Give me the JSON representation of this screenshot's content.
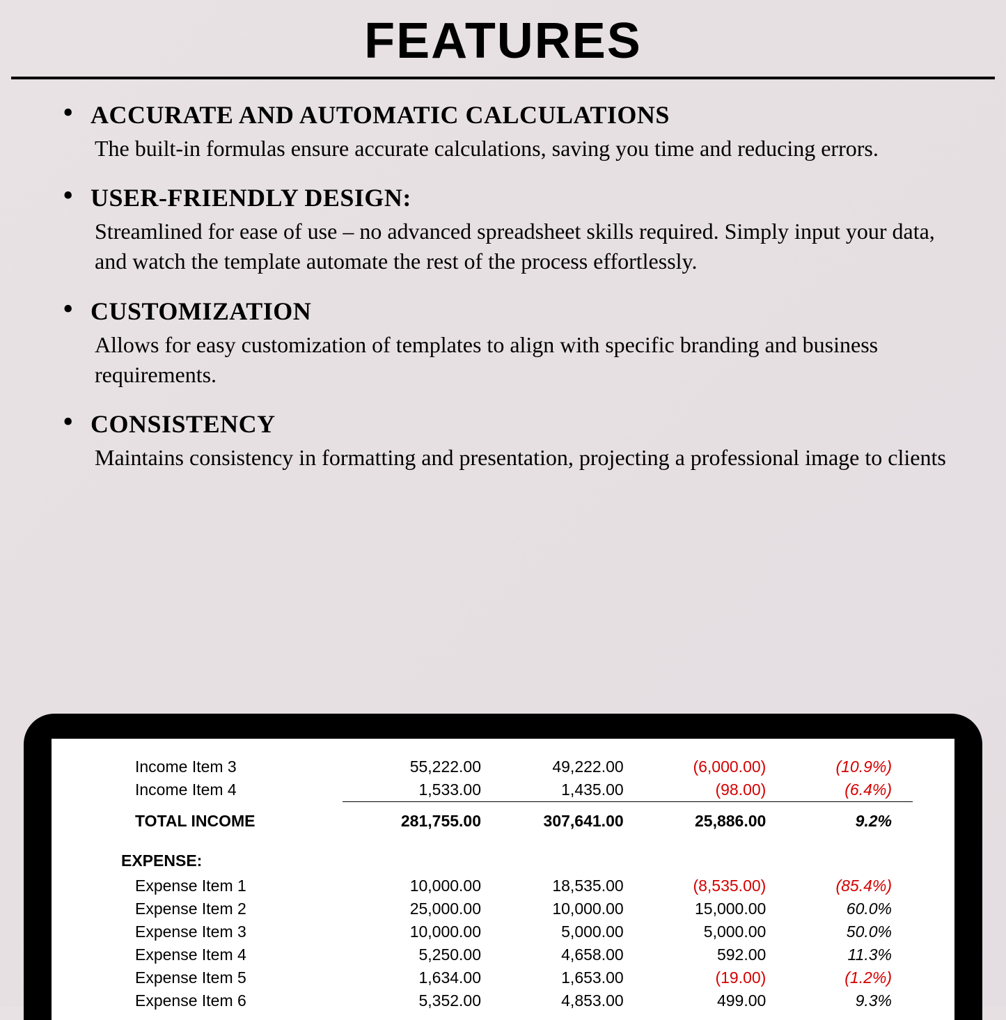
{
  "title": "FEATURES",
  "features": [
    {
      "heading": "ACCURATE AND AUTOMATIC CALCULATIONS",
      "body": "The built-in formulas ensure accurate calculations, saving you time and reducing errors."
    },
    {
      "heading": "USER-FRIENDLY DESIGN:",
      "body": "Streamlined for ease of use – no advanced spreadsheet skills required. Simply input your data, and watch the template automate the rest of the process effortlessly."
    },
    {
      "heading": "CUSTOMIZATION",
      "body": "Allows for easy customization of templates to align with specific branding and business requirements."
    },
    {
      "heading": "CONSISTENCY",
      "body": "Maintains consistency in formatting and presentation, projecting a professional image to clients"
    }
  ],
  "ledger": {
    "colors": {
      "negative": "#d40000",
      "text": "#000000",
      "screen_bg": "#ffffff",
      "frame_bg": "#000000"
    },
    "income_rows": [
      {
        "label": "Income Item 3",
        "a": "55,222.00",
        "b": "49,222.00",
        "c": "(6,000.00)",
        "c_neg": true,
        "d": "(10.9%)",
        "d_neg": true
      },
      {
        "label": "Income Item 4",
        "a": "1,533.00",
        "b": "1,435.00",
        "c": "(98.00)",
        "c_neg": true,
        "d": "(6.4%)",
        "d_neg": true
      }
    ],
    "total_income": {
      "label": "TOTAL INCOME",
      "a": "281,755.00",
      "b": "307,641.00",
      "c": "25,886.00",
      "c_neg": false,
      "d": "9.2%",
      "d_neg": false
    },
    "expense_header": "EXPENSE:",
    "expense_rows": [
      {
        "label": "Expense Item 1",
        "a": "10,000.00",
        "b": "18,535.00",
        "c": "(8,535.00)",
        "c_neg": true,
        "d": "(85.4%)",
        "d_neg": true
      },
      {
        "label": "Expense Item 2",
        "a": "25,000.00",
        "b": "10,000.00",
        "c": "15,000.00",
        "c_neg": false,
        "d": "60.0%",
        "d_neg": false
      },
      {
        "label": "Expense Item 3",
        "a": "10,000.00",
        "b": "5,000.00",
        "c": "5,000.00",
        "c_neg": false,
        "d": "50.0%",
        "d_neg": false
      },
      {
        "label": "Expense Item 4",
        "a": "5,250.00",
        "b": "4,658.00",
        "c": "592.00",
        "c_neg": false,
        "d": "11.3%",
        "d_neg": false
      },
      {
        "label": "Expense Item 5",
        "a": "1,634.00",
        "b": "1,653.00",
        "c": "(19.00)",
        "c_neg": true,
        "d": "(1.2%)",
        "d_neg": true
      },
      {
        "label": "Expense Item 6",
        "a": "5,352.00",
        "b": "4,853.00",
        "c": "499.00",
        "c_neg": false,
        "d": "9.3%",
        "d_neg": false
      }
    ]
  }
}
